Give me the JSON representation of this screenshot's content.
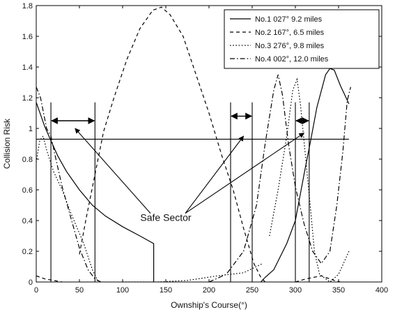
{
  "chart_data": {
    "type": "line",
    "xlabel": "Ownship's Course(°)",
    "ylabel": "Collision Risk",
    "xlim": [
      0,
      400
    ],
    "ylim": [
      0,
      1.8
    ],
    "x_ticks": [
      0,
      50,
      100,
      150,
      200,
      250,
      300,
      350,
      400
    ],
    "y_ticks": [
      0,
      0.2,
      0.4,
      0.6,
      0.8,
      1,
      1.2,
      1.4,
      1.6,
      1.8
    ],
    "x_tick_labels": [
      "0",
      "50",
      "100",
      "150",
      "200",
      "250",
      "300",
      "350",
      "400"
    ],
    "y_tick_labels": [
      "0",
      "0.2",
      "0.4",
      "0.6",
      "0.8",
      "1",
      "1.2",
      "1.4",
      "1.6",
      "1.8"
    ],
    "grid": false,
    "legend_position": "top-right",
    "series": [
      {
        "name": "No.1 027° 9.2 miles",
        "style": "solid",
        "color": "#000000",
        "segments": [
          [
            [
              0,
              1.17
            ],
            [
              5,
              1.09
            ],
            [
              10,
              1.01
            ],
            [
              17,
              0.92
            ],
            [
              25,
              0.82
            ],
            [
              35,
              0.72
            ],
            [
              50,
              0.6
            ],
            [
              65,
              0.5
            ],
            [
              80,
              0.43
            ],
            [
              100,
              0.36
            ],
            [
              120,
              0.3
            ],
            [
              136,
              0.25
            ],
            [
              136,
              0
            ]
          ],
          [
            [
              260,
              0
            ],
            [
              265,
              0.03
            ],
            [
              275,
              0.08
            ],
            [
              290,
              0.25
            ],
            [
              300,
              0.4
            ],
            [
              310,
              0.7
            ],
            [
              318,
              0.93
            ],
            [
              325,
              1.14
            ],
            [
              335,
              1.35
            ],
            [
              340,
              1.39
            ],
            [
              345,
              1.38
            ],
            [
              352,
              1.28
            ],
            [
              362,
              1.16
            ]
          ]
        ]
      },
      {
        "name": "No.2 167°, 6.5 miles",
        "style": "dashed",
        "color": "#000000",
        "segments": [
          [
            [
              0,
              0.04
            ],
            [
              10,
              0.02
            ],
            [
              20,
              0.01
            ],
            [
              30,
              0.0
            ]
          ],
          [
            [
              50,
              0.18
            ],
            [
              58,
              0.42
            ],
            [
              68,
              0.7
            ],
            [
              78,
              0.98
            ],
            [
              90,
              1.2
            ],
            [
              105,
              1.45
            ],
            [
              120,
              1.65
            ],
            [
              135,
              1.77
            ],
            [
              145,
              1.79
            ],
            [
              155,
              1.74
            ],
            [
              170,
              1.6
            ],
            [
              185,
              1.35
            ],
            [
              200,
              1.1
            ],
            [
              215,
              0.82
            ],
            [
              228,
              0.6
            ],
            [
              240,
              0.35
            ],
            [
              252,
              0.12
            ],
            [
              260,
              0.03
            ],
            [
              265,
              0.0
            ]
          ],
          [
            [
              300,
              0.0
            ],
            [
              312,
              0.02
            ],
            [
              330,
              0.04
            ],
            [
              345,
              0.01
            ],
            [
              352,
              0.0
            ]
          ]
        ]
      },
      {
        "name": "No.3 276°, 9.8 miles",
        "style": "dotted",
        "color": "#000000",
        "segments": [
          [
            [
              0,
              0.78
            ],
            [
              4,
              0.92
            ],
            [
              8,
              0.95
            ],
            [
              12,
              0.86
            ],
            [
              20,
              0.72
            ],
            [
              30,
              0.6
            ],
            [
              40,
              0.45
            ],
            [
              55,
              0.25
            ],
            [
              65,
              0.08
            ],
            [
              72,
              0.0
            ]
          ],
          [
            [
              100,
              0.0
            ],
            [
              140,
              0.0
            ],
            [
              175,
              0.01
            ],
            [
              210,
              0.04
            ],
            [
              240,
              0.06
            ],
            [
              262,
              0.12
            ]
          ],
          [
            [
              270,
              0.3
            ],
            [
              280,
              0.6
            ],
            [
              290,
              0.95
            ],
            [
              297,
              1.25
            ],
            [
              302,
              1.32
            ],
            [
              306,
              1.15
            ],
            [
              312,
              0.8
            ],
            [
              318,
              0.45
            ],
            [
              322,
              0.2
            ],
            [
              328,
              0.05
            ],
            [
              340,
              0.0
            ],
            [
              350,
              0.05
            ],
            [
              362,
              0.2
            ]
          ]
        ]
      },
      {
        "name": "No.4 002°, 12.0 miles",
        "style": "dashdot",
        "color": "#000000",
        "segments": [
          [
            [
              0,
              1.27
            ],
            [
              5,
              1.2
            ],
            [
              12,
              1.0
            ],
            [
              17,
              0.95
            ],
            [
              22,
              0.82
            ],
            [
              30,
              0.62
            ],
            [
              40,
              0.42
            ],
            [
              50,
              0.22
            ],
            [
              60,
              0.08
            ],
            [
              68,
              0.02
            ],
            [
              75,
              0.0
            ]
          ],
          [
            [
              200,
              0.0
            ],
            [
              220,
              0.05
            ],
            [
              240,
              0.2
            ],
            [
              255,
              0.5
            ],
            [
              265,
              0.9
            ],
            [
              275,
              1.25
            ],
            [
              280,
              1.35
            ],
            [
              285,
              1.22
            ],
            [
              292,
              0.9
            ],
            [
              300,
              0.62
            ],
            [
              310,
              0.38
            ],
            [
              320,
              0.2
            ],
            [
              330,
              0.12
            ],
            [
              340,
              0.2
            ],
            [
              348,
              0.5
            ],
            [
              355,
              0.85
            ],
            [
              360,
              1.18
            ],
            [
              364,
              1.27
            ]
          ]
        ]
      }
    ],
    "threshold_line": {
      "y": 0.93,
      "x_range": [
        0,
        362
      ]
    },
    "vertical_lines": [
      {
        "x": 17,
        "y_top": 1.17
      },
      {
        "x": 68,
        "y_top": 1.17
      },
      {
        "x": 225,
        "y_top": 1.17
      },
      {
        "x": 250,
        "y_top": 1.17
      },
      {
        "x": 300,
        "y_top": 1.17
      },
      {
        "x": 316,
        "y_top": 1.17
      }
    ],
    "double_arrows": [
      {
        "x1": 17,
        "x2": 68,
        "y": 1.05
      },
      {
        "x1": 225,
        "x2": 250,
        "y": 1.08
      },
      {
        "x1": 300,
        "x2": 316,
        "y": 1.05
      }
    ],
    "annotation": {
      "text": "Safe Sector",
      "x": 150,
      "y": 0.42,
      "arrow_targets": [
        {
          "x": 45,
          "y": 1.0
        },
        {
          "x": 240,
          "y": 0.95
        },
        {
          "x": 310,
          "y": 0.97
        }
      ]
    }
  }
}
